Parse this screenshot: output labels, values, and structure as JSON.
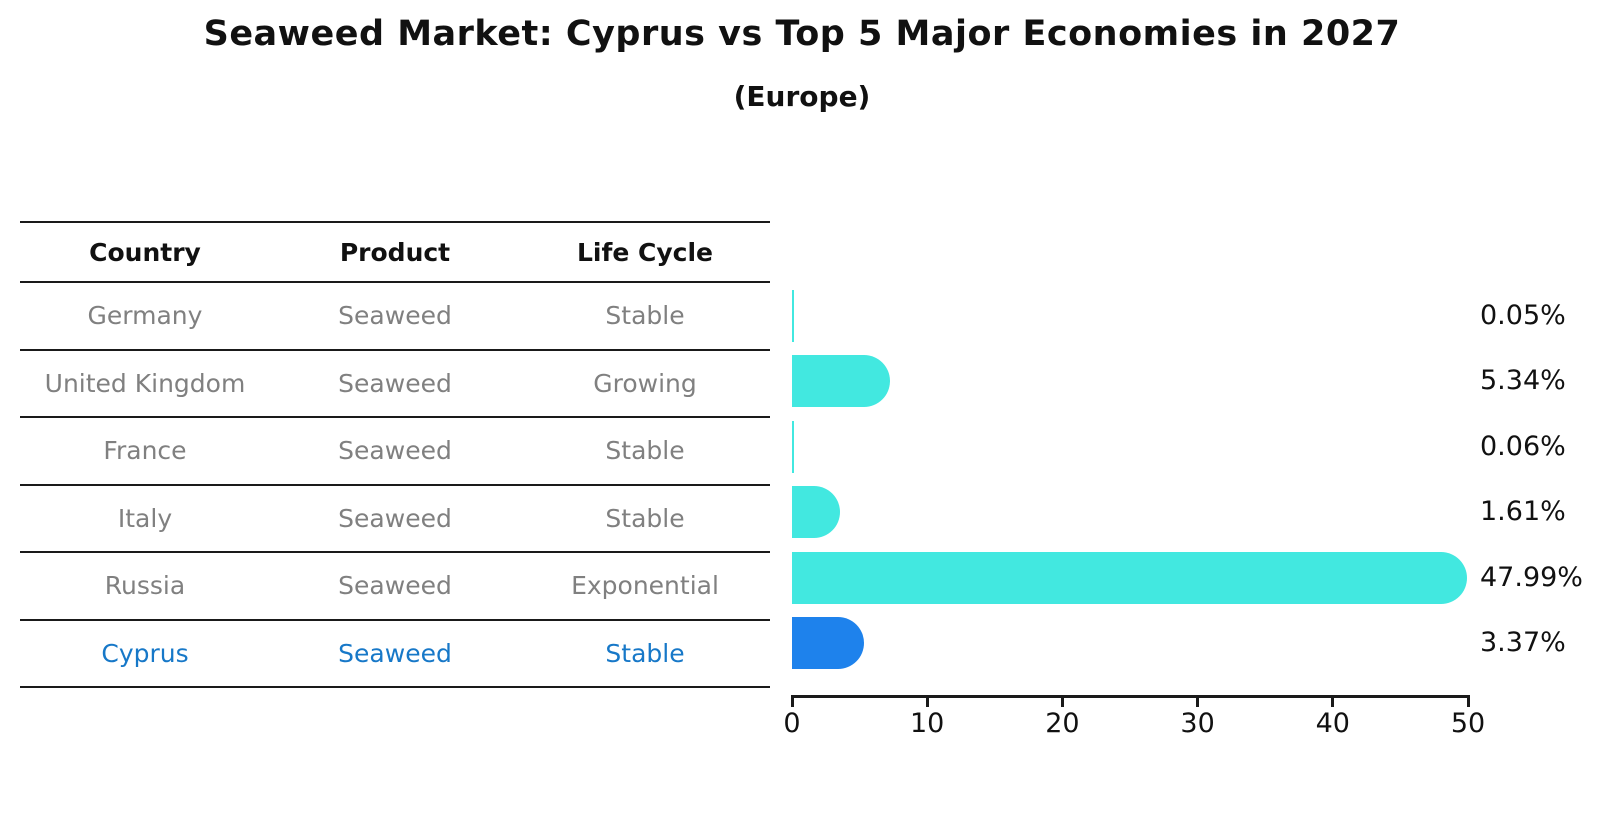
{
  "header": {
    "title": "Seaweed Market: Cyprus vs Top 5 Major Economies in 2027",
    "subtitle": "(Europe)"
  },
  "table": {
    "columns": [
      "Country",
      "Product",
      "Life Cycle"
    ],
    "rows": [
      {
        "country": "Germany",
        "product": "Seaweed",
        "life_cycle": "Stable",
        "highlight": false
      },
      {
        "country": "United Kingdom",
        "product": "Seaweed",
        "life_cycle": "Growing",
        "highlight": false
      },
      {
        "country": "France",
        "product": "Seaweed",
        "life_cycle": "Stable",
        "highlight": false
      },
      {
        "country": "Italy",
        "product": "Seaweed",
        "life_cycle": "Stable",
        "highlight": false
      },
      {
        "country": "Russia",
        "product": "Seaweed",
        "life_cycle": "Exponential",
        "highlight": false
      },
      {
        "country": "Cyprus",
        "product": "Seaweed",
        "life_cycle": "Stable",
        "highlight": true
      }
    ]
  },
  "chart_data": {
    "type": "bar",
    "orientation": "horizontal",
    "title": "Seaweed Market: Cyprus vs Top 5 Major Economies in 2027",
    "subtitle": "(Europe)",
    "categories": [
      "Germany",
      "United Kingdom",
      "France",
      "Italy",
      "Russia",
      "Cyprus"
    ],
    "values": [
      0.05,
      5.34,
      0.06,
      1.61,
      47.99,
      3.37
    ],
    "value_labels": [
      "0.05%",
      "5.34%",
      "0.06%",
      "1.61%",
      "47.99%",
      "3.37%"
    ],
    "life_cycles": [
      "Stable",
      "Growing",
      "Stable",
      "Stable",
      "Exponential",
      "Stable"
    ],
    "product": "Seaweed",
    "xlim": [
      0,
      50
    ],
    "xticks": [
      "0",
      "10",
      "20",
      "30",
      "40",
      "50"
    ],
    "xlabel": "",
    "ylabel": "",
    "grid": false,
    "legend": false,
    "bar_color": "#42e8e0",
    "highlight_bar_color": "#1e82ec",
    "highlight_category": "Cyprus",
    "highlight_bar_edge": "dotted"
  },
  "colors": {
    "bar_cyan": "#42e8e0",
    "bar_blue": "#1e82ec",
    "highlight_text": "#1778c8",
    "muted_text": "#808080",
    "axis_text": "#111111",
    "line": "#1a1a1a"
  }
}
